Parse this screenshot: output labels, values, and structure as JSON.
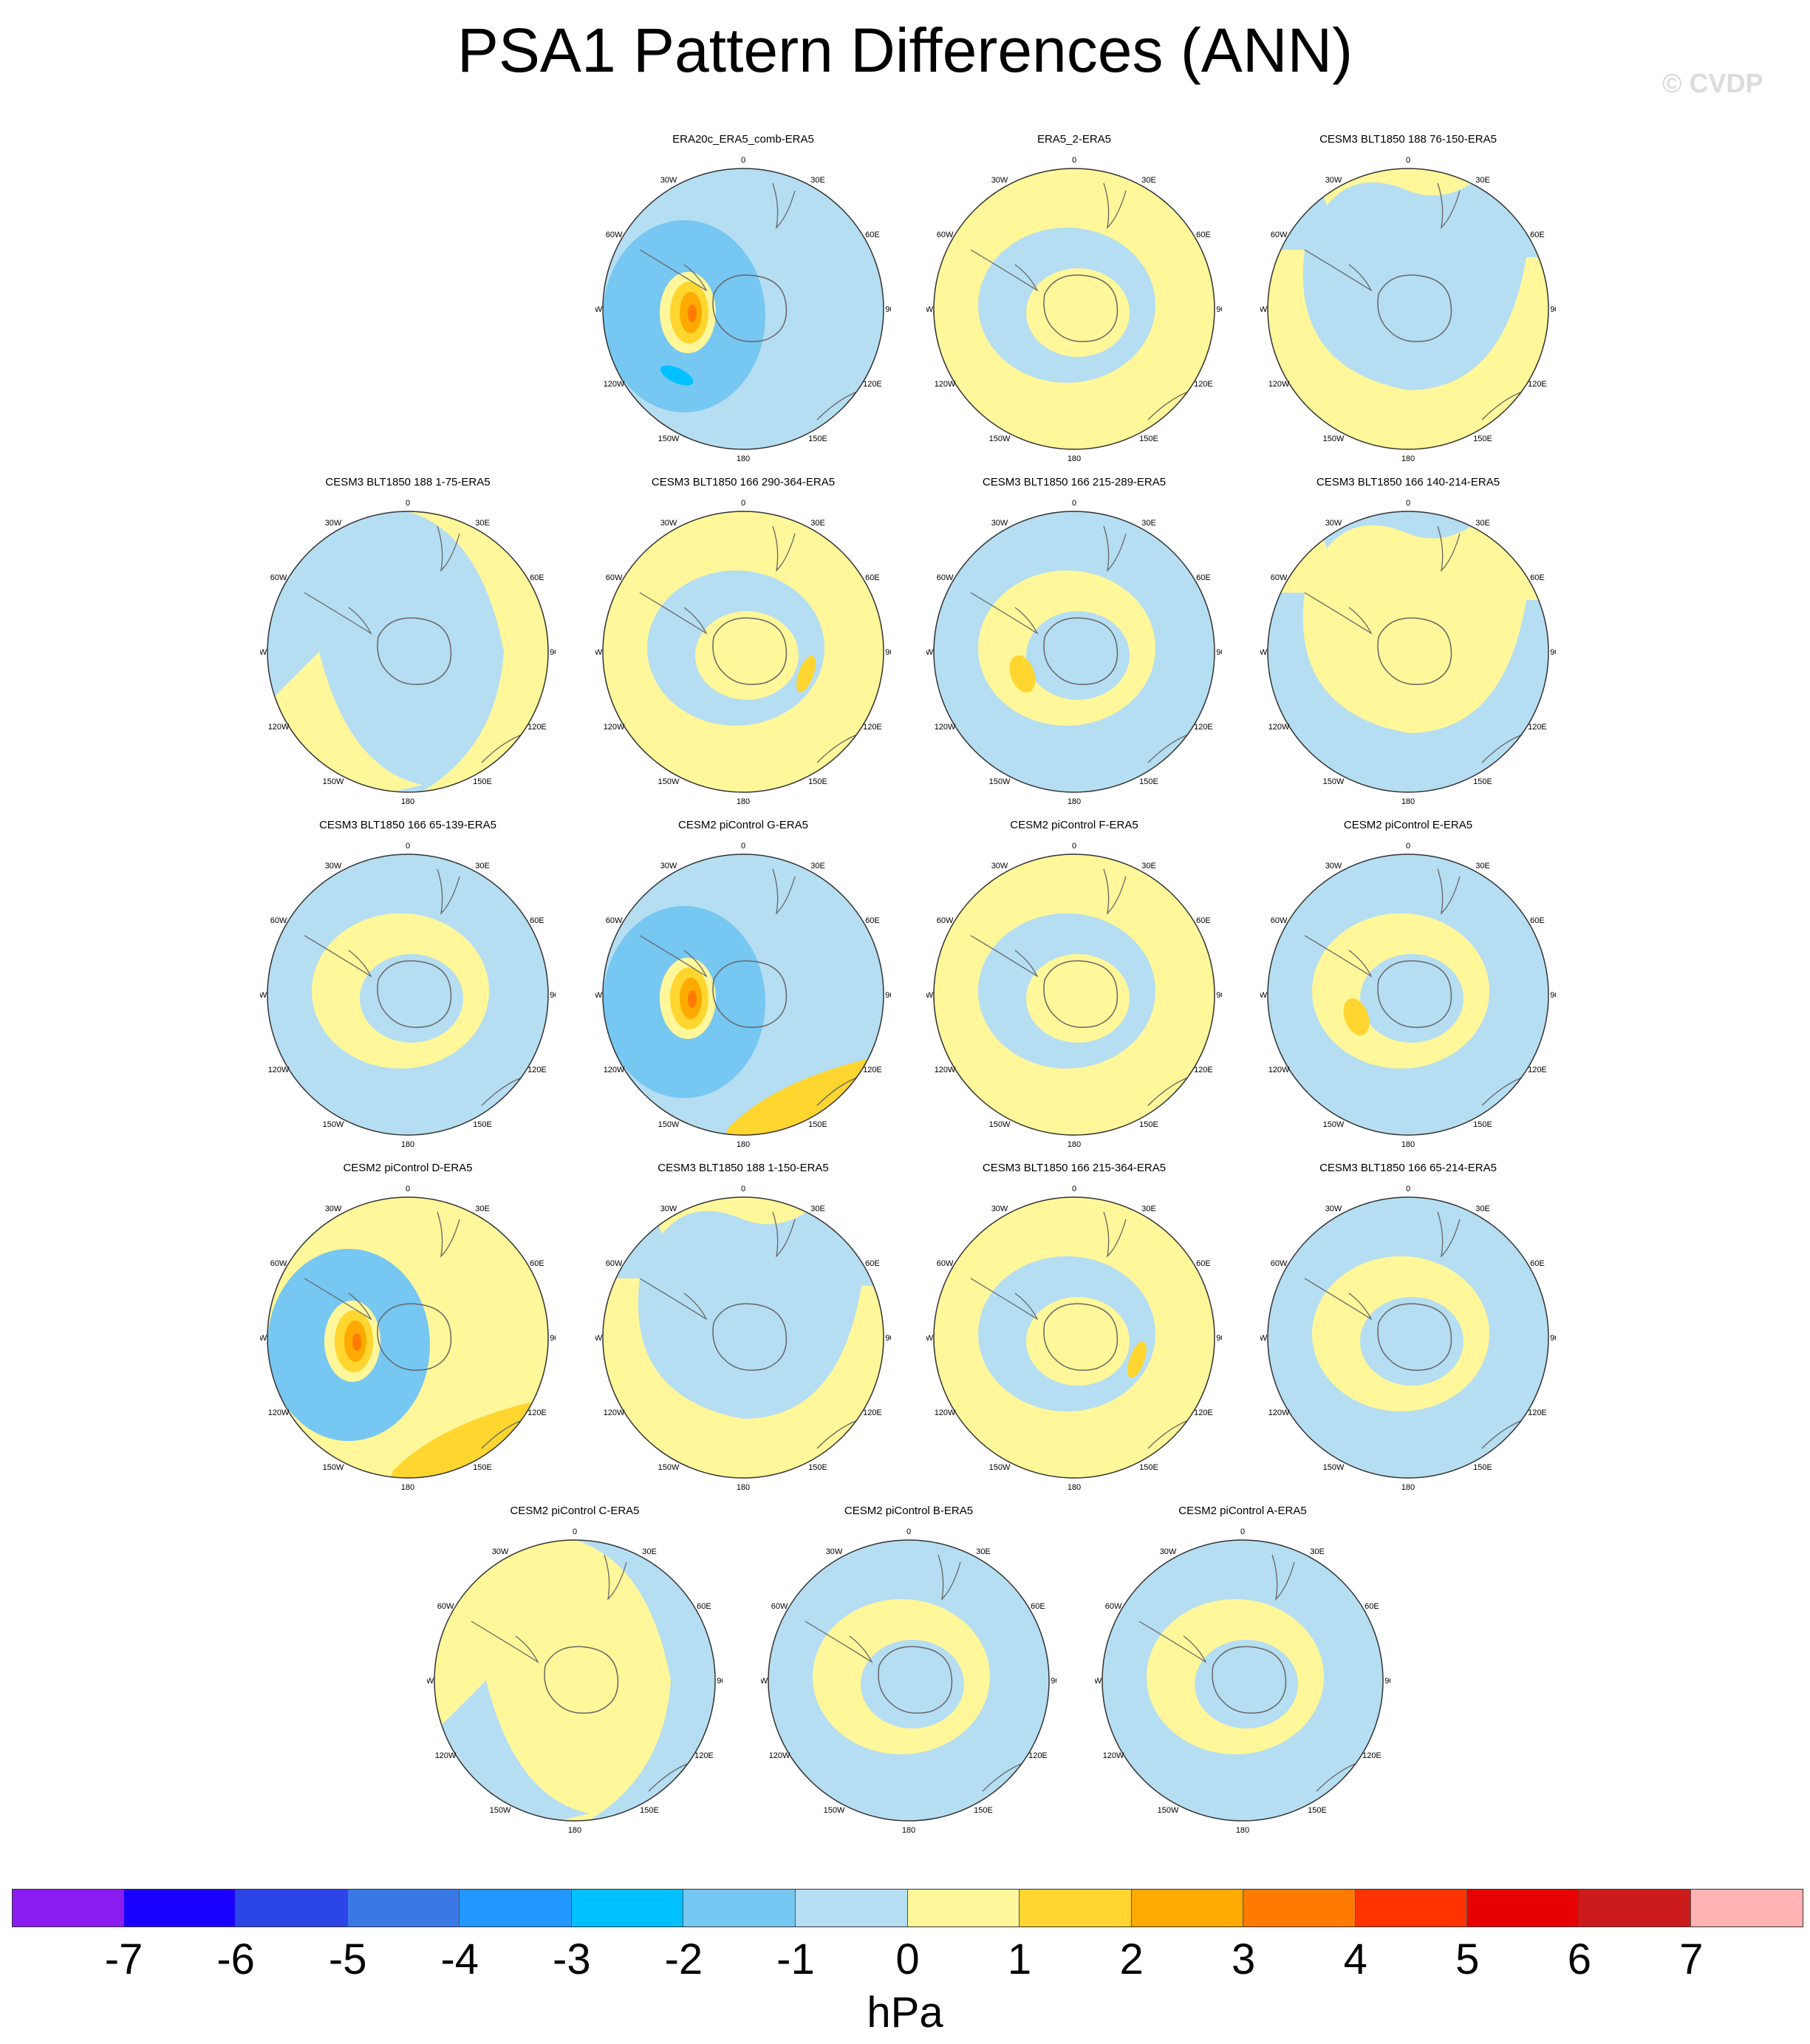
{
  "title": "PSA1 Pattern Differences (ANN)",
  "watermark": "© CVDP",
  "units": "hPa",
  "colorbar": {
    "colors": [
      "#8a1cf0",
      "#1a00ff",
      "#2b45e6",
      "#3a78e8",
      "#2297ff",
      "#00c0ff",
      "#76c7f2",
      "#b5def2",
      "#fff79a",
      "#ffd530",
      "#ffaa00",
      "#ff7a00",
      "#ff3300",
      "#e60000",
      "#cc1b1b",
      "#ffb3b3"
    ],
    "labels": [
      "-7",
      "-6",
      "-5",
      "-4",
      "-3",
      "-2",
      "-1",
      "0",
      "1",
      "2",
      "3",
      "4",
      "5",
      "6",
      "7"
    ]
  },
  "map_labels": {
    "top": "0",
    "bottom": "180",
    "w30": "30W",
    "w60": "60W",
    "w90": "90W",
    "w120": "120W",
    "w150": "150W",
    "e30": "30E",
    "e60": "60E",
    "e90": "90E",
    "e120": "120E",
    "e150": "150E"
  },
  "panels": [
    {
      "title": "ERA20c_ERA5_comb-ERA5",
      "base": "light-blue",
      "features": [
        "strong-positive-anomaly-west",
        "negative-lobe-south"
      ]
    },
    {
      "title": "ERA5_2-ERA5",
      "base": "yellow",
      "features": [
        "blue-ring"
      ]
    },
    {
      "title": "CESM3 BLT1850 188 76-150-ERA5",
      "base": "light-blue",
      "features": [
        "yellow-arc"
      ]
    },
    {
      "title": "CESM3 BLT1850 188 1-75-ERA5",
      "base": "light-blue",
      "features": [
        "yellow-east-half"
      ]
    },
    {
      "title": "CESM3 BLT1850 166 290-364-ERA5",
      "base": "yellow",
      "features": [
        "blue-ring",
        "small-positive-east"
      ]
    },
    {
      "title": "CESM3 BLT1850 166 215-289-ERA5",
      "base": "light-blue",
      "features": [
        "yellow-ring",
        "small-positive-west"
      ]
    },
    {
      "title": "CESM3 BLT1850 166 140-214-ERA5",
      "base": "yellow",
      "features": [
        "blue-arc"
      ]
    },
    {
      "title": "CESM3 BLT1850 166 65-139-ERA5",
      "base": "light-blue",
      "features": [
        "yellow-ring"
      ]
    },
    {
      "title": "CESM2 piControl G-ERA5",
      "base": "light-blue",
      "features": [
        "strong-positive-anomaly-west",
        "positive-lobe-southeast"
      ]
    },
    {
      "title": "CESM2 piControl F-ERA5",
      "base": "yellow",
      "features": [
        "blue-ring"
      ]
    },
    {
      "title": "CESM2 piControl E-ERA5",
      "base": "light-blue",
      "features": [
        "yellow-ring",
        "small-positive-west"
      ]
    },
    {
      "title": "CESM2 piControl D-ERA5",
      "base": "yellow",
      "features": [
        "strong-positive-anomaly-west",
        "positive-lobe-southeast"
      ]
    },
    {
      "title": "CESM3 BLT1850 188 1-150-ERA5",
      "base": "light-blue",
      "features": [
        "yellow-arc"
      ]
    },
    {
      "title": "CESM3 BLT1850 166 215-364-ERA5",
      "base": "yellow",
      "features": [
        "blue-ring",
        "small-positive-east"
      ]
    },
    {
      "title": "CESM3 BLT1850 166 65-214-ERA5",
      "base": "light-blue",
      "features": [
        "yellow-ring"
      ]
    },
    {
      "title": "CESM2 piControl C-ERA5",
      "base": "yellow",
      "features": [
        "blue-east-half"
      ]
    },
    {
      "title": "CESM2 piControl B-ERA5",
      "base": "light-blue",
      "features": [
        "yellow-ring"
      ]
    },
    {
      "title": "CESM2 piControl A-ERA5",
      "base": "light-blue",
      "features": [
        "yellow-ring"
      ]
    }
  ]
}
